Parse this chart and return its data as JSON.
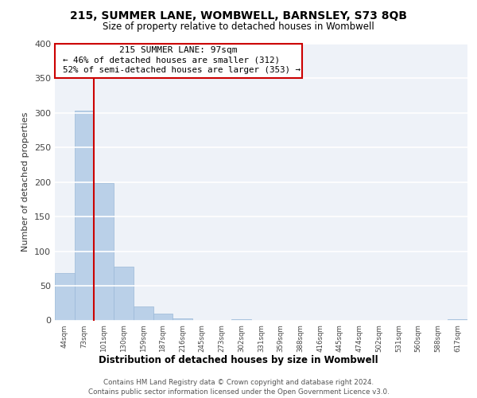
{
  "title": "215, SUMMER LANE, WOMBWELL, BARNSLEY, S73 8QB",
  "subtitle": "Size of property relative to detached houses in Wombwell",
  "xlabel": "Distribution of detached houses by size in Wombwell",
  "ylabel": "Number of detached properties",
  "bin_labels": [
    "44sqm",
    "73sqm",
    "101sqm",
    "130sqm",
    "159sqm",
    "187sqm",
    "216sqm",
    "245sqm",
    "273sqm",
    "302sqm",
    "331sqm",
    "359sqm",
    "388sqm",
    "416sqm",
    "445sqm",
    "474sqm",
    "502sqm",
    "531sqm",
    "560sqm",
    "588sqm",
    "617sqm"
  ],
  "bar_heights": [
    68,
    303,
    198,
    78,
    20,
    10,
    3,
    0,
    0,
    2,
    0,
    0,
    0,
    0,
    0,
    0,
    0,
    0,
    0,
    0,
    2
  ],
  "bar_color": "#bad0e8",
  "bar_edge_color": "#9ab8d8",
  "vline_color": "#cc0000",
  "ylim": [
    0,
    400
  ],
  "yticks": [
    0,
    50,
    100,
    150,
    200,
    250,
    300,
    350,
    400
  ],
  "annotation_title": "215 SUMMER LANE: 97sqm",
  "annotation_line1": "← 46% of detached houses are smaller (312)",
  "annotation_line2": "52% of semi-detached houses are larger (353) →",
  "footer_line1": "Contains HM Land Registry data © Crown copyright and database right 2024.",
  "footer_line2": "Contains public sector information licensed under the Open Government Licence v3.0.",
  "background_color": "#eef2f8"
}
